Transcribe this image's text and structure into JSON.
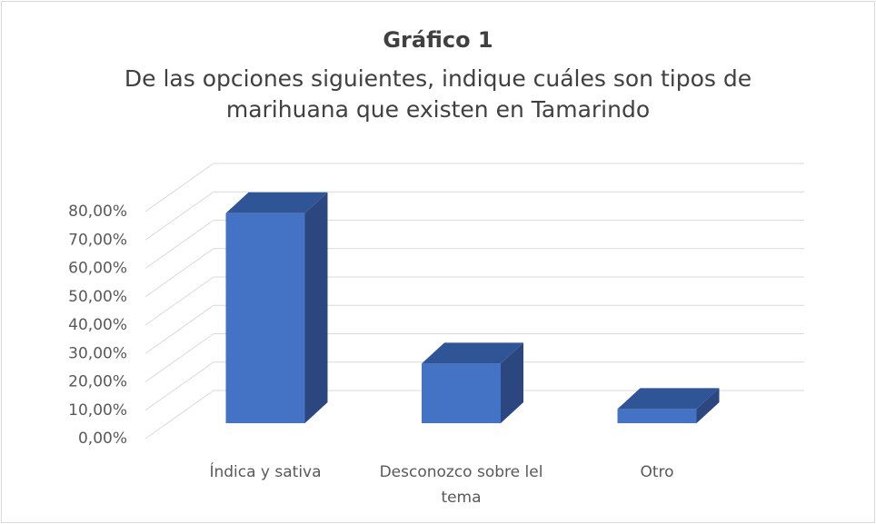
{
  "chart_data": {
    "type": "bar3d",
    "title": "Gráfico 1",
    "subtitle": "De las opciones siguientes, indique cuáles son tipos de marihuana que existen en Tamarindo",
    "categories": [
      "Índica y sativa",
      "Desconozco sobre lel tema",
      "Otro"
    ],
    "values": [
      74,
      21,
      5
    ],
    "color": "#4472c4",
    "ylim": [
      0,
      80
    ],
    "yticks": [
      {
        "value": 0,
        "label": "0,00%"
      },
      {
        "value": 10,
        "label": "10,00%"
      },
      {
        "value": 20,
        "label": "20,00%"
      },
      {
        "value": 30,
        "label": "30,00%"
      },
      {
        "value": 40,
        "label": "40,00%"
      },
      {
        "value": 50,
        "label": "50,00%"
      },
      {
        "value": 60,
        "label": "60,00%"
      },
      {
        "value": 70,
        "label": "70,00%"
      },
      {
        "value": 80,
        "label": "80,00%"
      }
    ],
    "grid": true
  }
}
